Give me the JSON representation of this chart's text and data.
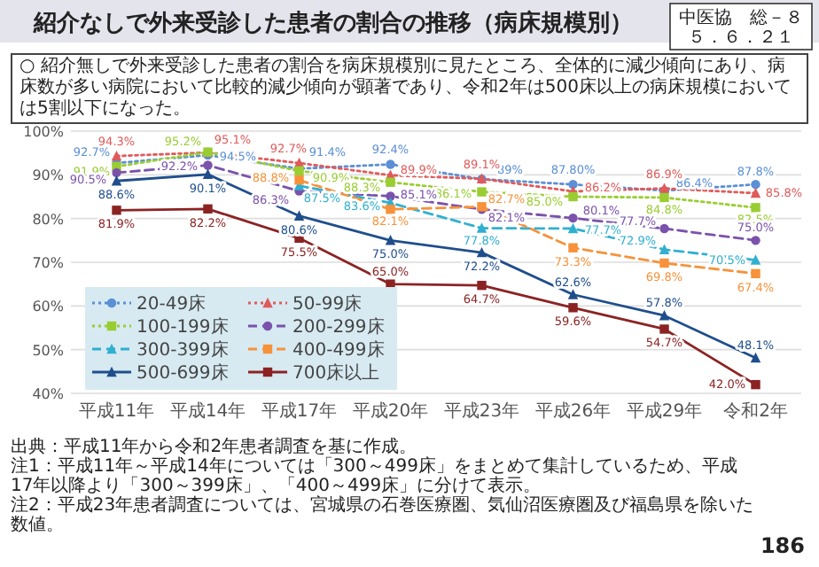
{
  "chart_data": {
    "type": "line",
    "title": "紹介なしで外来受診した患者の割合の推移（病床規模別）",
    "subtitle": "○ 紹介無しで外来受診した患者の割合を病床規模別に見たところ、全体的に減少傾向にあり、病床数が多い病院において比較的減少傾向が顕著であり、令和2年は500床以上の病床規模においては5割以下になった。",
    "categories": [
      "平成11年",
      "平成14年",
      "平成17年",
      "平成20年",
      "平成23年",
      "平成26年",
      "平成29年",
      "令和2年"
    ],
    "series": [
      {
        "name": "20-49床",
        "color": "#5b8fd6",
        "line_style": "dotted",
        "marker": "circle",
        "values": [
          92.7,
          94.5,
          91.4,
          92.4,
          89,
          87.8,
          86.4,
          87.8
        ],
        "value_labels": [
          "92.7%",
          "94.5%",
          "91.4%",
          "92.4%",
          "89%",
          "87.80%",
          "86.4%",
          "87.8%"
        ]
      },
      {
        "name": "50-99床",
        "color": "#e05a5a",
        "line_style": "dotted",
        "marker": "triangle",
        "values": [
          94.3,
          95.1,
          92.7,
          89.9,
          89.1,
          86.2,
          86.9,
          85.8
        ],
        "value_labels": [
          "94.3%",
          "95.1%",
          "92.7%",
          "89.9%",
          "89.1%",
          "86.2%",
          "86.9%",
          "85.8%"
        ]
      },
      {
        "name": "100-199床",
        "color": "#9acd32",
        "line_style": "dotted",
        "marker": "square",
        "values": [
          91.9,
          95.2,
          90.9,
          88.3,
          86.1,
          85.0,
          84.8,
          82.5
        ],
        "value_labels": [
          "91.9%",
          "95.2%",
          "90.9%",
          "88.3%",
          "86.1%",
          "85.0%",
          "84.8%",
          "82.5%"
        ]
      },
      {
        "name": "200-299床",
        "color": "#7b52ab",
        "line_style": "dashed",
        "marker": "circle",
        "values": [
          90.5,
          92.2,
          86.3,
          85.1,
          82.1,
          80.1,
          77.7,
          75.0
        ],
        "value_labels": [
          "90.5%",
          "92.2%",
          "86.3%",
          "85.1%",
          "82.1%",
          "80.1%",
          "77.7%",
          "75.0%"
        ]
      },
      {
        "name": "300-399床",
        "color": "#30b0d0",
        "line_style": "dashed",
        "marker": "triangle",
        "values": [
          null,
          null,
          87.5,
          83.6,
          77.8,
          77.7,
          72.9,
          70.5
        ],
        "value_labels": [
          null,
          null,
          "87.5%",
          "83.6%",
          "77.8%",
          "77.7%",
          "72.9%",
          "70.5%"
        ]
      },
      {
        "name": "400-499床",
        "color": "#f7923a",
        "line_style": "dashed",
        "marker": "square",
        "values": [
          null,
          null,
          88.8,
          82.1,
          82.7,
          73.3,
          69.8,
          67.4
        ],
        "value_labels": [
          null,
          null,
          "88.8%",
          "82.1%",
          "82.7%",
          "73.3%",
          "69.8%",
          "67.4%"
        ]
      },
      {
        "name": "500-699床",
        "color": "#1f4e8c",
        "line_style": "solid",
        "marker": "triangle",
        "values": [
          88.6,
          90.1,
          80.6,
          75.0,
          72.2,
          62.6,
          57.8,
          48.1
        ],
        "value_labels": [
          "88.6%",
          "90.1%",
          "80.6%",
          "75.0%",
          "72.2%",
          "62.6%",
          "57.8%",
          "48.1%"
        ]
      },
      {
        "name": "700床以上",
        "color": "#8b2323",
        "line_style": "solid",
        "marker": "square",
        "values": [
          81.9,
          82.2,
          75.5,
          65.0,
          64.7,
          59.6,
          54.7,
          42.0
        ],
        "value_labels": [
          "81.9%",
          "82.2%",
          "75.5%",
          "65.0%",
          "64.7%",
          "59.6%",
          "54.7%",
          "42.0%"
        ]
      }
    ],
    "ylim": [
      40,
      100
    ],
    "yticks": [
      {
        "value": 40,
        "label": "40%"
      },
      {
        "value": 50,
        "label": "50%"
      },
      {
        "value": 60,
        "label": "60%"
      },
      {
        "value": 70,
        "label": "70%"
      },
      {
        "value": 80,
        "label": "80%"
      },
      {
        "value": 90,
        "label": "90%"
      },
      {
        "value": 100,
        "label": "100%"
      }
    ],
    "grid": "y",
    "legend": "bottom left",
    "annotations": [
      "中医協　総－８",
      "５．６．２１",
      "出典：平成11年から令和2年患者調査を基に作成。",
      "注1：平成11年～平成14年については「300～499床」をまとめて集計しているため、平成17年以降より「300～399床」、「400～499床」に分けて表示。",
      "注2：平成23年患者調査については、宮城県の石巻医療圏、気仙沼医療圏及び福島県を除いた数値。",
      "186"
    ]
  }
}
